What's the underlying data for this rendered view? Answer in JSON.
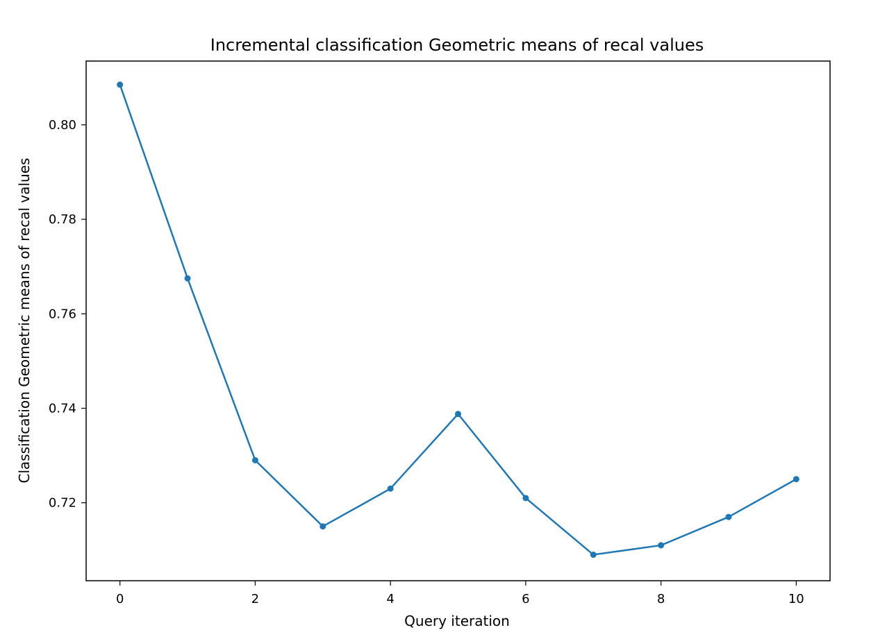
{
  "chart_data": {
    "type": "line",
    "title": "Incremental classification Geometric means of recal values",
    "xlabel": "Query iteration",
    "ylabel": "Classification Geometric means of recal values",
    "xlim": [
      -0.5,
      10.5
    ],
    "ylim": [
      0.7035,
      0.8135
    ],
    "xticks": [
      0,
      2,
      4,
      6,
      8,
      10
    ],
    "yticks": [
      0.72,
      0.74,
      0.76,
      0.78,
      0.8
    ],
    "xtick_labels": [
      "0",
      "2",
      "4",
      "6",
      "8",
      "10"
    ],
    "ytick_labels": [
      "0.72",
      "0.74",
      "0.76",
      "0.78",
      "0.80"
    ],
    "grid": false,
    "series": [
      {
        "color": "#1f77b4",
        "x": [
          0,
          1,
          2,
          3,
          4,
          5,
          6,
          7,
          8,
          9,
          10
        ],
        "y": [
          0.8085,
          0.7675,
          0.729,
          0.715,
          0.723,
          0.7388,
          0.721,
          0.709,
          0.711,
          0.717,
          0.725
        ]
      }
    ]
  }
}
